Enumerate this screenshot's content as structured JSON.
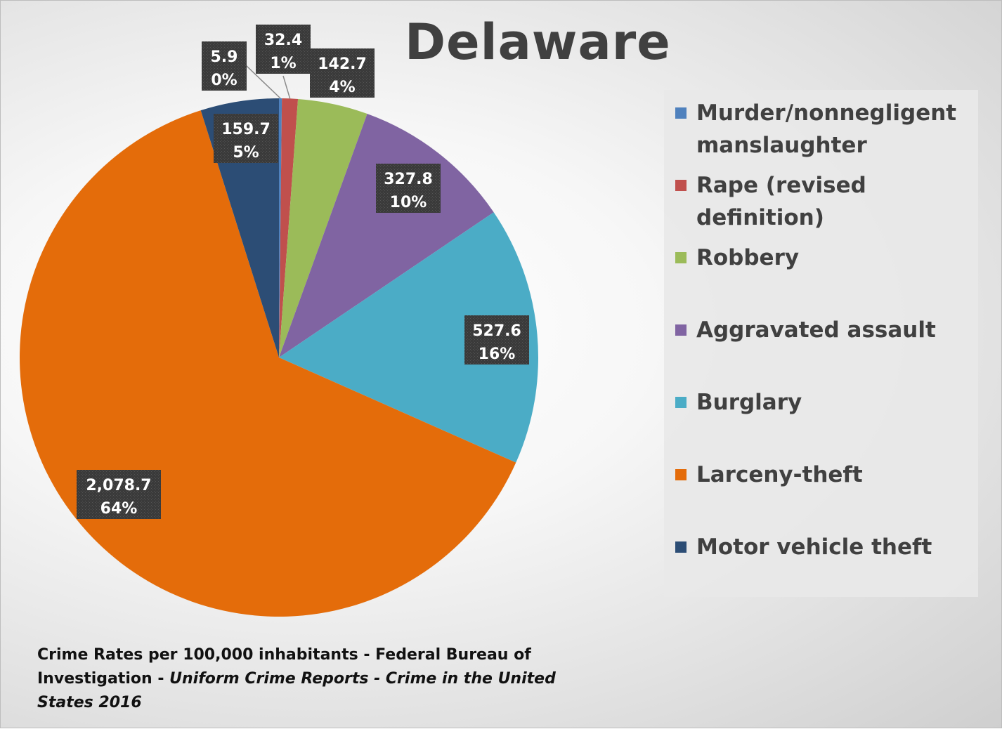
{
  "chart_data": {
    "type": "pie",
    "title": "Delaware",
    "categories": [
      "Murder/nonnegligent manslaughter",
      "Rape (revised definition)",
      "Robbery",
      "Aggravated assault",
      "Burglary",
      "Larceny-theft",
      "Motor vehicle theft"
    ],
    "values": [
      5.9,
      32.4,
      142.7,
      327.8,
      527.6,
      2078.7,
      159.7
    ],
    "value_labels": [
      "5.9",
      "32.4",
      "142.7",
      "327.8",
      "527.6",
      "2,078.7",
      "159.7"
    ],
    "percent_labels": [
      "0%",
      "1%",
      "4%",
      "10%",
      "16%",
      "64%",
      "5%"
    ],
    "colors": [
      "#4F81BD",
      "#C0504D",
      "#9BBB59",
      "#8064A2",
      "#4BACC6",
      "#E46C0A",
      "#2C4D75"
    ],
    "legend_position": "right",
    "start_angle_deg": 0,
    "direction": "clockwise"
  },
  "source_note": {
    "prefix": "Crime Rates per 100,000 inhabitants - Federal Bureau of Investigation - ",
    "italic": "Uniform Crime Reports - Crime in the United States 2016"
  }
}
